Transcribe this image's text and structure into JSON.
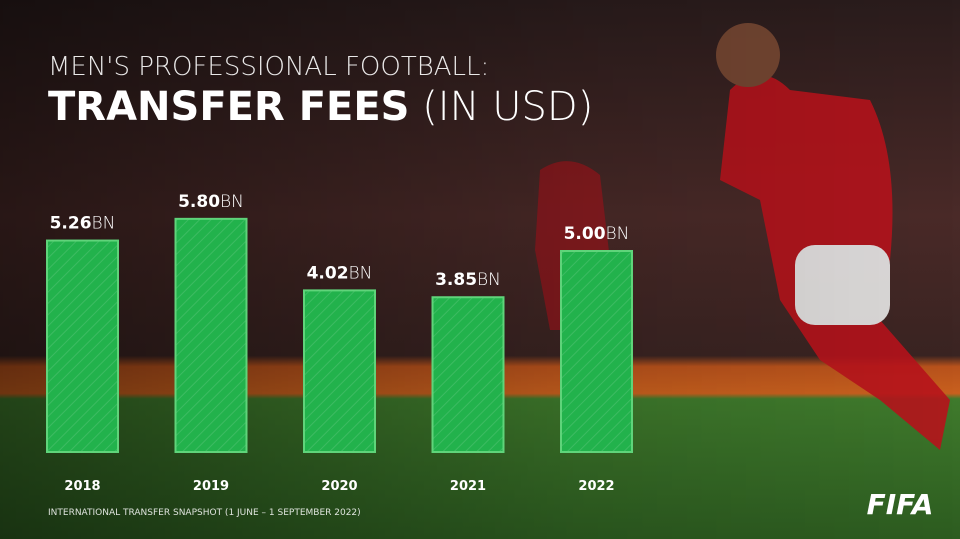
{
  "chart_data": {
    "type": "bar",
    "subtitle": "MEN'S PROFESSIONAL FOOTBALL:",
    "title": "TRANSFER FEES",
    "title_suffix": "(IN USD)",
    "categories": [
      "2018",
      "2019",
      "2020",
      "2021",
      "2022"
    ],
    "values": [
      5.26,
      5.8,
      4.02,
      3.85,
      5.0
    ],
    "value_labels": [
      "5.26",
      "5.80",
      "4.02",
      "3.85",
      "5.00"
    ],
    "unit": "BN",
    "color": "#22b24c",
    "footnote": "INTERNATIONAL TRANSFER SNAPSHOT (1 JUNE – 1 SEPTEMBER 2022)",
    "logo": "FIFA"
  }
}
